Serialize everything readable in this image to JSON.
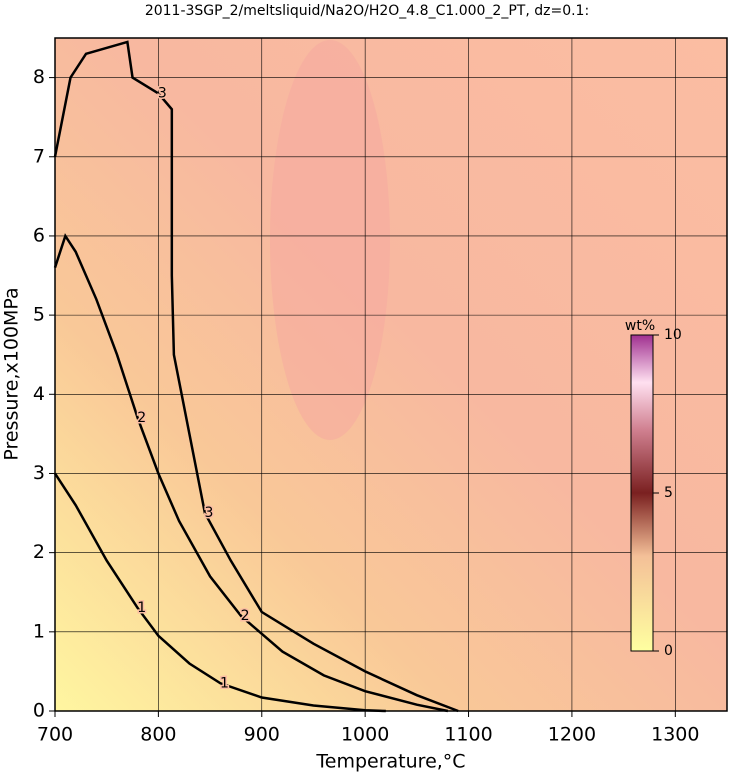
{
  "chart_data": {
    "type": "contour",
    "title": "2011-3SGP_2/meltsliquid/Na2O/H2O_4.8_C1.000_2_PT, dz=0.1:",
    "x_label": "Temperature,°C",
    "y_label": "Pressure,x100MPa",
    "xlim": [
      700,
      1350
    ],
    "ylim": [
      0,
      8.5
    ],
    "xticks": [
      700,
      800,
      900,
      1000,
      1100,
      1200,
      1300
    ],
    "yticks": [
      0,
      1,
      2,
      3,
      4,
      5,
      6,
      7,
      8
    ],
    "grid": true,
    "color": "#000000",
    "contours": [
      {
        "level": 1,
        "x": [
          700,
          720,
          750,
          780,
          800,
          830,
          860,
          900,
          950,
          1000,
          1020
        ],
        "y": [
          3.0,
          2.6,
          1.9,
          1.3,
          0.95,
          0.6,
          0.35,
          0.17,
          0.07,
          0.01,
          0
        ]
      },
      {
        "level": 2,
        "x": [
          700,
          710,
          720,
          740,
          760,
          780,
          800,
          820,
          850,
          880,
          920,
          960,
          1000,
          1050,
          1080
        ],
        "y": [
          5.6,
          6.0,
          5.8,
          5.2,
          4.5,
          3.7,
          3.0,
          2.4,
          1.7,
          1.2,
          0.75,
          0.45,
          0.25,
          0.08,
          0
        ]
      },
      {
        "level": 3,
        "x": [
          700,
          715,
          730,
          770,
          775,
          800,
          813,
          813,
          815,
          830,
          845,
          870,
          900,
          950,
          1000,
          1050,
          1090
        ],
        "y": [
          7.0,
          8.0,
          8.3,
          8.45,
          8.0,
          7.8,
          7.6,
          5.5,
          4.5,
          3.5,
          2.5,
          1.9,
          1.25,
          0.85,
          0.5,
          0.2,
          0
        ]
      }
    ],
    "colorbar": {
      "label": "wt%",
      "lim": [
        0,
        10
      ],
      "ticks": [
        0,
        5,
        10
      ]
    }
  }
}
